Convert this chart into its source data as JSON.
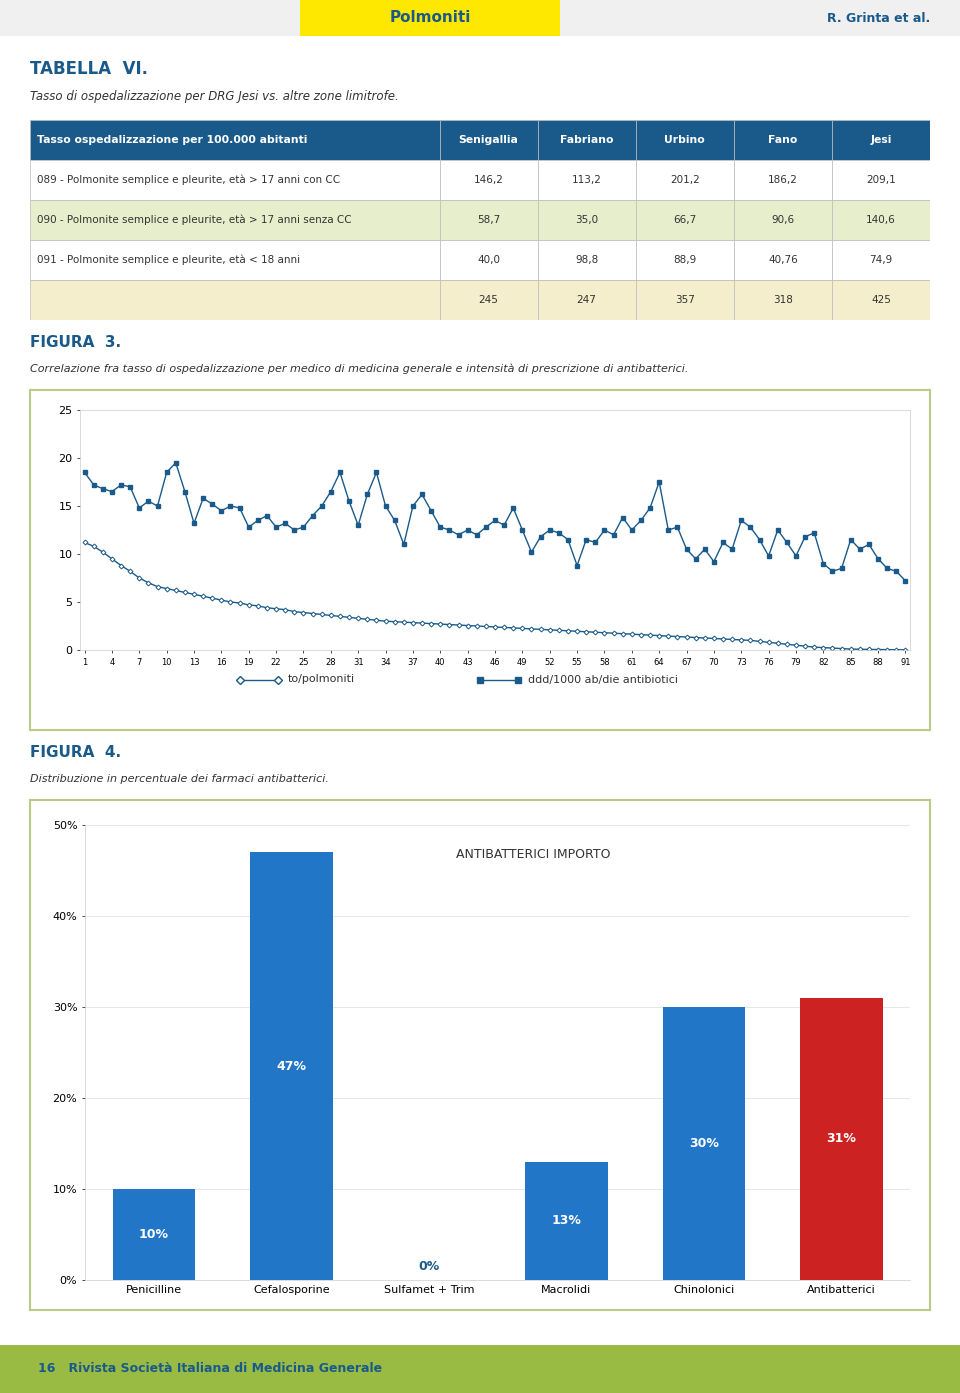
{
  "page_bg": "#ffffff",
  "header_yellow": "#FFE800",
  "header_text": "Polmoniti",
  "header_right": "R. Grinta et al.",
  "header_text_color": "#1a5a8a",
  "tabella_title": "TABELLA  VI.",
  "tabella_subtitle": "Tasso di ospedalizzazione per DRG Jesi vs. altre zone limitrofe.",
  "table_header_bg": "#1a5a8a",
  "table_header_fg": "#ffffff",
  "table_row_bg_white": "#ffffff",
  "table_row_bg_green": "#e6eecc",
  "table_row_bg_yellow": "#f5eecc",
  "table_border_color": "#bbbbbb",
  "col_header": "Tasso ospedalizzazione per 100.000 abitanti",
  "col_names": [
    "Senigallia",
    "Fabriano",
    "Urbino",
    "Fano",
    "Jesi"
  ],
  "row_labels": [
    "089 - Polmonite semplice e pleurite, età > 17 anni con CC",
    "090 - Polmonite semplice e pleurite, età > 17 anni senza CC",
    "091 - Polmonite semplice e pleurite, età < 18 anni",
    ""
  ],
  "table_values_str": [
    [
      "146,2",
      "113,2",
      "201,2",
      "186,2",
      "209,1"
    ],
    [
      "58,7",
      "35,0",
      "66,7",
      "90,6",
      "140,6"
    ],
    [
      "40,0",
      "98,8",
      "88,9",
      "40,76",
      "74,9"
    ],
    [
      "245",
      "247",
      "357",
      "318",
      "425"
    ]
  ],
  "table_row_bgs": [
    "white",
    "green",
    "white",
    "yellow"
  ],
  "fig3_title": "FIGURA  3.",
  "fig3_subtitle": "Correlazione fra tasso di ospedalizzazione per medico di medicina generale e intensità di prescrizione di antibatterici.",
  "fig3_box_color": "#b8cc88",
  "x_ticks": [
    1,
    4,
    7,
    10,
    13,
    16,
    19,
    22,
    25,
    28,
    31,
    34,
    37,
    40,
    43,
    46,
    49,
    52,
    55,
    58,
    61,
    64,
    67,
    70,
    73,
    76,
    79,
    82,
    85,
    88,
    91
  ],
  "series1_label": "to/polmoniti",
  "series1_color": "#1a5a8a",
  "series1_x": [
    1,
    2,
    3,
    4,
    5,
    6,
    7,
    8,
    9,
    10,
    11,
    12,
    13,
    14,
    15,
    16,
    17,
    18,
    19,
    20,
    21,
    22,
    23,
    24,
    25,
    26,
    27,
    28,
    29,
    30,
    31,
    32,
    33,
    34,
    35,
    36,
    37,
    38,
    39,
    40,
    41,
    42,
    43,
    44,
    45,
    46,
    47,
    48,
    49,
    50,
    51,
    52,
    53,
    54,
    55,
    56,
    57,
    58,
    59,
    60,
    61,
    62,
    63,
    64,
    65,
    66,
    67,
    68,
    69,
    70,
    71,
    72,
    73,
    74,
    75,
    76,
    77,
    78,
    79,
    80,
    81,
    82,
    83,
    84,
    85,
    86,
    87,
    88,
    89,
    90,
    91
  ],
  "series1_y": [
    11.2,
    10.8,
    10.2,
    9.5,
    8.8,
    8.2,
    7.5,
    7.0,
    6.6,
    6.4,
    6.2,
    6.0,
    5.8,
    5.6,
    5.4,
    5.2,
    5.0,
    4.9,
    4.7,
    4.6,
    4.4,
    4.3,
    4.2,
    4.0,
    3.9,
    3.8,
    3.7,
    3.6,
    3.5,
    3.4,
    3.3,
    3.2,
    3.1,
    3.0,
    2.95,
    2.9,
    2.85,
    2.8,
    2.75,
    2.7,
    2.65,
    2.6,
    2.55,
    2.5,
    2.45,
    2.4,
    2.35,
    2.3,
    2.25,
    2.2,
    2.15,
    2.1,
    2.05,
    2.0,
    1.95,
    1.9,
    1.85,
    1.8,
    1.75,
    1.7,
    1.65,
    1.6,
    1.55,
    1.5,
    1.45,
    1.4,
    1.35,
    1.3,
    1.25,
    1.2,
    1.15,
    1.1,
    1.05,
    1.0,
    0.9,
    0.8,
    0.7,
    0.6,
    0.5,
    0.4,
    0.3,
    0.25,
    0.2,
    0.15,
    0.1,
    0.08,
    0.06,
    0.05,
    0.04,
    0.03,
    0.02
  ],
  "series2_label": "ddd/1000 ab/die antibiotici",
  "series2_color": "#1a5a8a",
  "series2_x": [
    1,
    2,
    3,
    4,
    5,
    6,
    7,
    8,
    9,
    10,
    11,
    12,
    13,
    14,
    15,
    16,
    17,
    18,
    19,
    20,
    21,
    22,
    23,
    24,
    25,
    26,
    27,
    28,
    29,
    30,
    31,
    32,
    33,
    34,
    35,
    36,
    37,
    38,
    39,
    40,
    41,
    42,
    43,
    44,
    45,
    46,
    47,
    48,
    49,
    50,
    51,
    52,
    53,
    54,
    55,
    56,
    57,
    58,
    59,
    60,
    61,
    62,
    63,
    64,
    65,
    66,
    67,
    68,
    69,
    70,
    71,
    72,
    73,
    74,
    75,
    76,
    77,
    78,
    79,
    80,
    81,
    82,
    83,
    84,
    85,
    86,
    87,
    88,
    89,
    90,
    91
  ],
  "series2_y": [
    18.5,
    17.2,
    16.8,
    16.5,
    17.2,
    17.0,
    14.8,
    15.5,
    15.0,
    18.5,
    19.5,
    16.5,
    13.2,
    15.8,
    15.2,
    14.5,
    15.0,
    14.8,
    12.8,
    13.5,
    14.0,
    12.8,
    13.2,
    12.5,
    12.8,
    14.0,
    15.0,
    16.5,
    18.5,
    15.5,
    13.0,
    16.2,
    18.5,
    15.0,
    13.5,
    11.0,
    15.0,
    16.2,
    14.5,
    12.8,
    12.5,
    12.0,
    12.5,
    12.0,
    12.8,
    13.5,
    13.0,
    14.8,
    12.5,
    10.2,
    11.8,
    12.5,
    12.2,
    11.5,
    8.8,
    11.5,
    11.2,
    12.5,
    12.0,
    13.8,
    12.5,
    13.5,
    14.8,
    17.5,
    12.5,
    12.8,
    10.5,
    9.5,
    10.5,
    9.2,
    11.2,
    10.5,
    13.5,
    12.8,
    11.5,
    9.8,
    12.5,
    11.2,
    9.8,
    11.8,
    12.2,
    9.0,
    8.2,
    8.5,
    11.5,
    10.5,
    11.0,
    9.5,
    8.5,
    8.2,
    7.2
  ],
  "fig4_title": "FIGURA  4.",
  "fig4_subtitle": "Distribuzione in percentuale dei farmaci antibatterici.",
  "fig4_box_color": "#b8cc88",
  "bar_categories": [
    "Penicilline",
    "Cefalosporine",
    "Sulfamet + Trim",
    "Macrolidi",
    "Chinolonici",
    "Antibatterici"
  ],
  "bar_values": [
    10,
    47,
    0,
    13,
    30,
    31
  ],
  "bar_colors": [
    "#2176c7",
    "#2176c7",
    "#2176c7",
    "#2176c7",
    "#2176c7",
    "#cc2222"
  ],
  "bar_annotation": "ANTIBATTERICI IMPORTO",
  "bar_text_color": "#ffffff",
  "footer_bg": "#99bb44",
  "footer_text": "16   Rivista Società Italiana di Medicina Generale",
  "footer_text_color": "#1a5a8a"
}
